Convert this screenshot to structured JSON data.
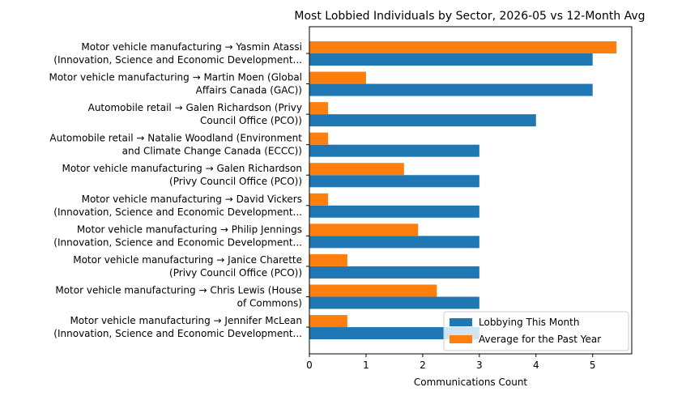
{
  "chart_data": {
    "type": "bar",
    "orientation": "horizontal",
    "title": "Most Lobbied Individuals by Sector, 2026-05 vs 12-Month Avg",
    "x_label": "Communications Count",
    "categories": [
      [
        "Motor vehicle manufacturing → Yasmin Atassi",
        "(Innovation, Science and Economic Development..."
      ],
      [
        "Motor vehicle manufacturing → Martin Moen (Global",
        "Affairs Canada (GAC))"
      ],
      [
        "Automobile retail → Galen Richardson (Privy",
        "Council Office (PCO))"
      ],
      [
        "Automobile retail → Natalie Woodland (Environment",
        "and Climate Change Canada (ECCC))"
      ],
      [
        "Motor vehicle manufacturing → Galen Richardson",
        "(Privy Council Office (PCO))"
      ],
      [
        "Motor vehicle manufacturing → David Vickers",
        "(Innovation, Science and Economic Development..."
      ],
      [
        "Motor vehicle manufacturing → Philip Jennings",
        "(Innovation, Science and Economic Development..."
      ],
      [
        "Motor vehicle manufacturing → Janice Charette",
        "(Privy Council Office (PCO))"
      ],
      [
        "Motor vehicle manufacturing → Chris Lewis (House",
        "of Commons)"
      ],
      [
        "Motor vehicle manufacturing → Jennifer McLean",
        "(Innovation, Science and Economic Development..."
      ]
    ],
    "series": [
      {
        "name": "Lobbying This Month",
        "color": "#1f77b4",
        "values": [
          5,
          5,
          4,
          3,
          3,
          3,
          3,
          3,
          3,
          3
        ]
      },
      {
        "name": "Average for the Past Year",
        "color": "#ff7f0e",
        "values": [
          5.42,
          1.0,
          0.33,
          0.33,
          1.67,
          0.33,
          1.92,
          0.67,
          2.25,
          0.67
        ]
      }
    ],
    "xlim": [
      0,
      5.69
    ],
    "xticks": [
      0,
      1,
      2,
      3,
      4,
      5
    ],
    "grid": false,
    "legend": "lower right"
  }
}
